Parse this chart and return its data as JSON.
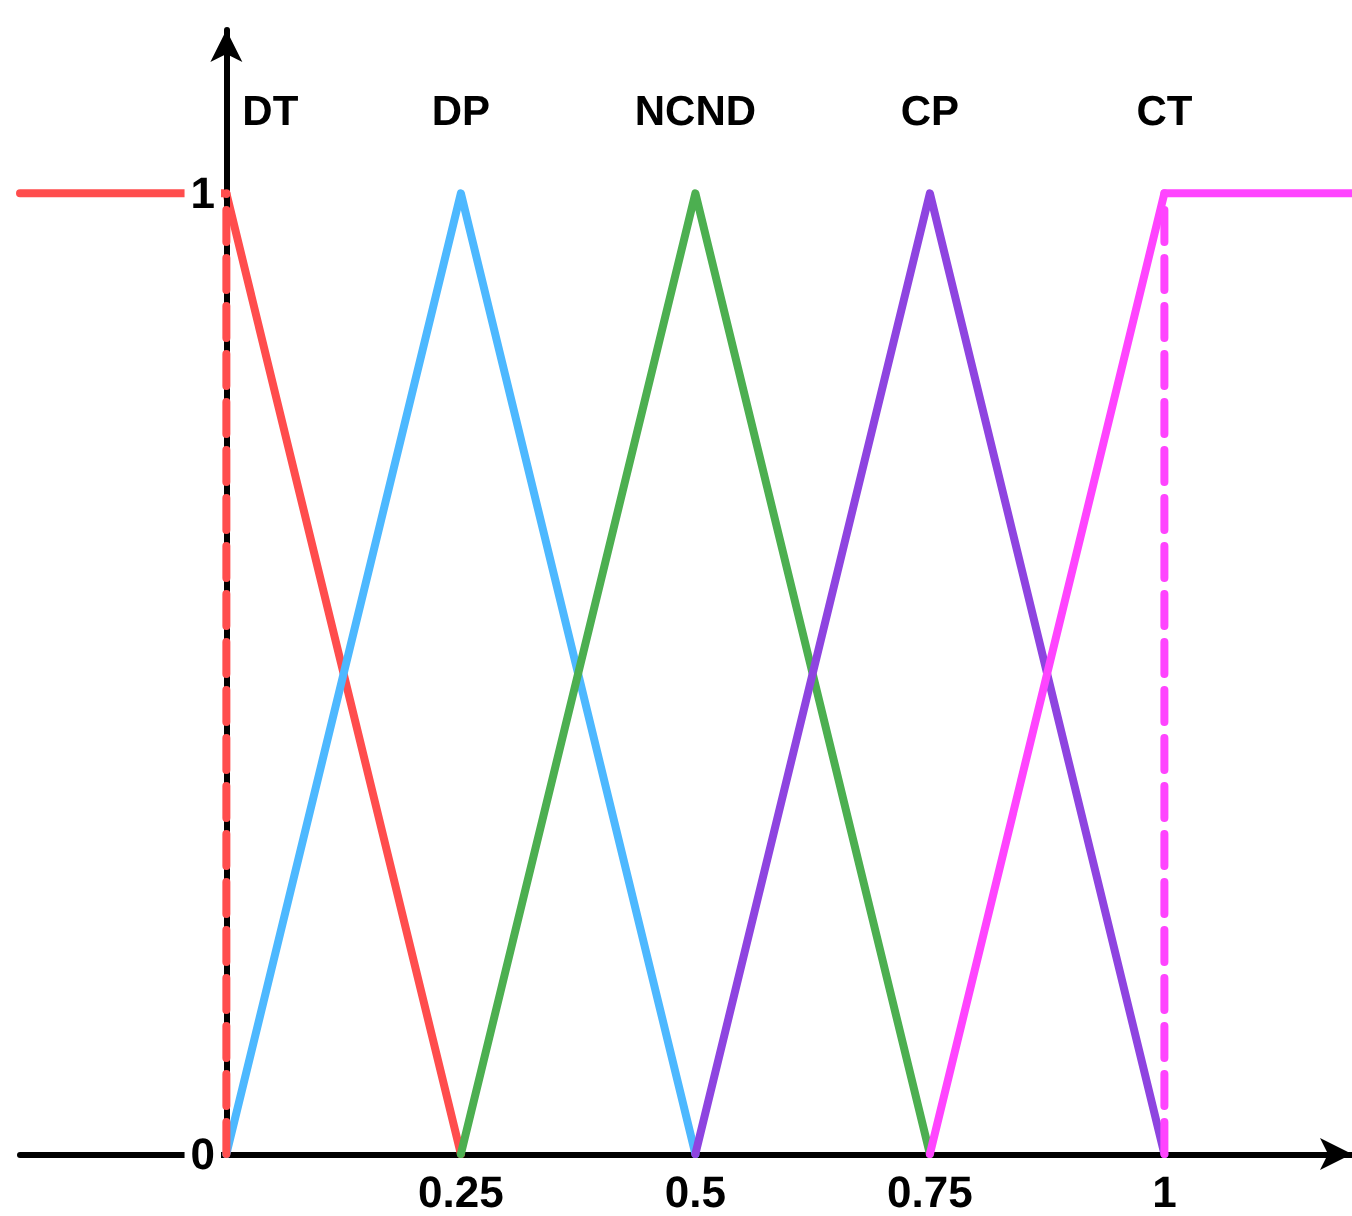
{
  "chart_data": {
    "type": "line",
    "xlim": [
      -0.22,
      1.2
    ],
    "ylim": [
      0,
      1.17
    ],
    "xticks": [
      0.25,
      0.5,
      0.75,
      1
    ],
    "yticks": [
      0,
      1
    ],
    "grid": false,
    "legend": false,
    "series": [
      {
        "name": "DT",
        "color": "#ff4d4d",
        "x": [
          -0.22,
          0,
          0.25
        ],
        "values": [
          1,
          1,
          0
        ]
      },
      {
        "name": "DP",
        "color": "#4db8ff",
        "x": [
          0,
          0.25,
          0.5
        ],
        "values": [
          0,
          1,
          0
        ]
      },
      {
        "name": "NCND",
        "color": "#4caf50",
        "x": [
          0.25,
          0.5,
          0.75
        ],
        "values": [
          0,
          1,
          0
        ]
      },
      {
        "name": "CP",
        "color": "#8e44e0",
        "x": [
          0.5,
          0.75,
          1
        ],
        "values": [
          0,
          1,
          0
        ]
      },
      {
        "name": "CT",
        "color": "#ff44ff",
        "x": [
          0.75,
          1,
          1.2
        ],
        "values": [
          0,
          1,
          1
        ]
      },
      {
        "color": "#ff4d4d",
        "x": [
          0,
          0
        ],
        "values": [
          0,
          1
        ],
        "line_style": "dashed"
      },
      {
        "color": "#ff44ff",
        "x": [
          1,
          1
        ],
        "values": [
          0,
          1
        ],
        "line_style": "dashed"
      }
    ]
  }
}
